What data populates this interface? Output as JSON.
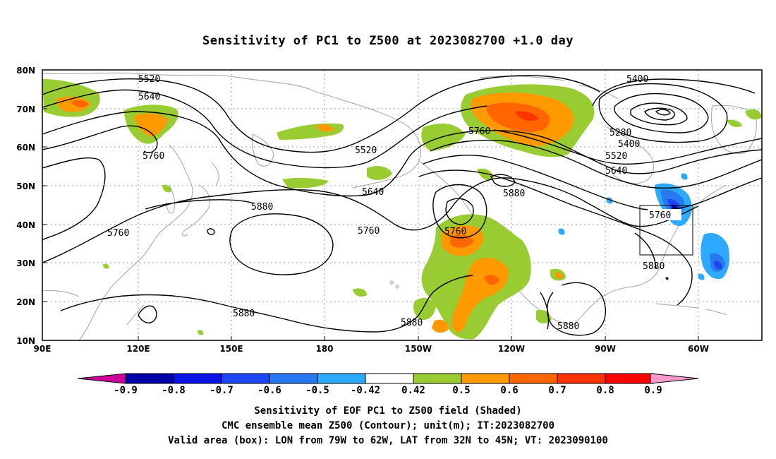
{
  "title": "Sensitivity of PC1 to Z500 at 2023082700 +1.0 day",
  "map": {
    "lat_labels": [
      "80N",
      "70N",
      "60N",
      "50N",
      "40N",
      "30N",
      "20N",
      "10N"
    ],
    "lon_labels": [
      "90E",
      "120E",
      "150E",
      "180",
      "150W",
      "120W",
      "90W",
      "60W"
    ],
    "contour_labels": [
      "5520",
      "5640",
      "5760",
      "5520",
      "5640",
      "5760",
      "5880",
      "5760",
      "5760",
      "5400",
      "5280",
      "5400",
      "5520",
      "5640",
      "5880",
      "5760",
      "5880",
      "5880",
      "5880",
      "5880"
    ],
    "valid_box": {
      "lon_west": "79W",
      "lon_east": "62W",
      "lat_south": "32N",
      "lat_north": "45N"
    }
  },
  "colorbar": {
    "labels": [
      "-0.9",
      "-0.8",
      "-0.7",
      "-0.6",
      "-0.5",
      "-0.42",
      "0.42",
      "0.5",
      "0.6",
      "0.7",
      "0.8",
      "0.9"
    ],
    "colors": [
      "#0000a8",
      "#0a14e6",
      "#1e46f5",
      "#2878f0",
      "#2da9ff",
      "#ffffff",
      "#99cc33",
      "#ff9900",
      "#ff6600",
      "#ff3300",
      "#ff0000"
    ],
    "low_extend_color": "#cc0099",
    "high_extend_color": "#ff99cc"
  },
  "caption": {
    "line1": "Sensitivity of EOF PC1 to Z500 field (Shaded)",
    "line2": "CMC ensemble mean Z500 (Contour); unit(m); IT:2023082700",
    "line3": "Valid area (box): LON from 79W to 62W, LAT from 32N to 45N; VT: 2023090100"
  }
}
